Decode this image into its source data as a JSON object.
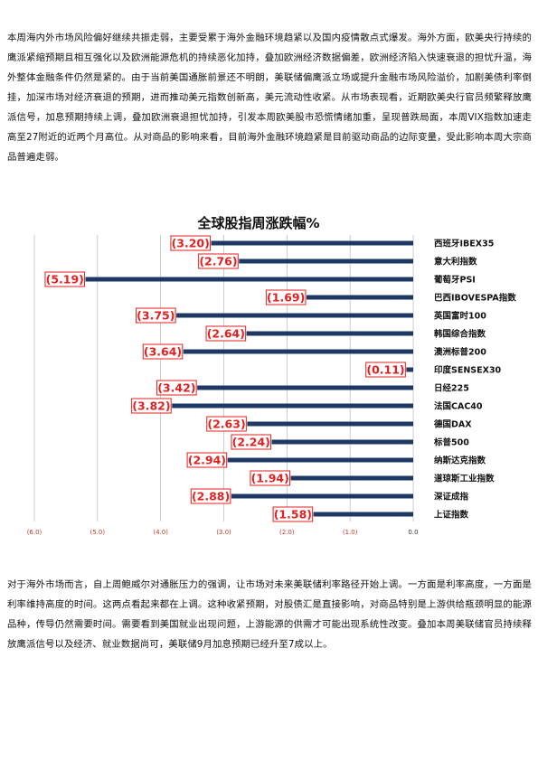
{
  "paragraphs": {
    "p1": "本周海内外市场风险偏好继续共振走弱，主要受累于海外金融环境趋紧以及国内疫情散点式爆发。海外方面，欧美央行持续的鹰派紧缩预期且相互强化以及欧洲能源危机的持续恶化加持，叠加欧洲经济数据偏差，欧洲经济陷入快速衰退的担忧升温，海外整体金融条件仍然是紧的。由于当前美国通胀前景还不明朗，美联储偏鹰派立场或提升金融市场风险溢价，加剧美债利率倒挂，加深市场对经济衰退的预期，进而推动美元指数创新高，美元流动性收紧。从市场表现看，近期欧美央行官员频繁释放鹰派信号，加息预期持续上调，叠加欧洲衰退担忧加持，引发本周欧美股市恐慌情绪加重，呈现普跌局面，本周VIX指数加速走高至27附近的近两个月高位。从对商品的影响来看，目前海外金融环境趋紧是目前驱动商品的边际变量，受此影响本周大宗商品普遍走弱。",
    "p2": "对于海外市场而言，自上周鲍威尔对通胀压力的强调，让市场对未来美联储利率路径开始上调。一方面是利率高度，一方面是利率维持高度的时间。这两点看起来都在上调。这种收紧预期，对股债汇是直接影响，对商品特别是上游供给瓶颈明显的能源品种，传导仍然需要时间。需要看到美国就业出现问题，上游能源的供需才可能出现系统性改变。叠加本周美联储官员持续释放鹰派信号以及经济、就业数据尚可，美联储9月加息预期已经升至7成以上。"
  },
  "chart_data": {
    "type": "bar",
    "orientation": "horizontal",
    "title": "全球股指周涨跌幅%",
    "categories": [
      "西班牙IBEX35",
      "意大利指数",
      "葡萄牙PSI",
      "巴西IBOVESPA指数",
      "英国富时100",
      "韩国综合指数",
      "澳洲标普200",
      "印度SENSEX30",
      "日经225",
      "法国CAC40",
      "德国DAX",
      "标普500",
      "纳斯达克指数",
      "道琼斯工业指数",
      "深证成指",
      "上证指数"
    ],
    "values": [
      -3.2,
      -2.76,
      -5.19,
      -1.69,
      -3.75,
      -2.64,
      -3.64,
      -0.11,
      -3.42,
      -3.82,
      -2.63,
      -2.24,
      -2.94,
      -1.94,
      -2.88,
      -1.58
    ],
    "value_labels": [
      "(3.20)",
      "(2.76)",
      "(5.19)",
      "(1.69)",
      "(3.75)",
      "(2.64)",
      "(3.64)",
      "(0.11)",
      "(3.42)",
      "(3.82)",
      "(2.63)",
      "(2.24)",
      "(2.94)",
      "(1.94)",
      "(2.88)",
      "(1.58)"
    ],
    "xlim": [
      -6.0,
      0.0
    ],
    "xticks": [
      -6.0,
      -5.0,
      -4.0,
      -3.0,
      -2.0,
      -1.0,
      0.0
    ],
    "xtick_labels": [
      "(6.0)",
      "(5.0)",
      "(4.0)",
      "(3.0)",
      "(2.0)",
      "(1.0)",
      "0.0"
    ],
    "grid": true,
    "colors": {
      "bar": "#1f3864",
      "label": "#e2201f",
      "grid": "#b8b8b8"
    }
  }
}
